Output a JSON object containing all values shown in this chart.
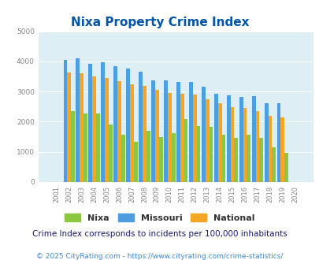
{
  "title": "Nixa Property Crime Index",
  "subtitle": "Crime Index corresponds to incidents per 100,000 inhabitants",
  "footer": "© 2025 CityRating.com - https://www.cityrating.com/crime-statistics/",
  "years": [
    2001,
    2002,
    2003,
    2004,
    2005,
    2006,
    2007,
    2008,
    2009,
    2010,
    2011,
    2012,
    2013,
    2014,
    2015,
    2016,
    2017,
    2018,
    2019,
    2020
  ],
  "nixa": [
    0,
    2340,
    2280,
    2270,
    1900,
    1560,
    1320,
    1700,
    1490,
    1610,
    2080,
    1860,
    1820,
    1560,
    1450,
    1560,
    1450,
    1160,
    960,
    0
  ],
  "missouri": [
    0,
    4060,
    4090,
    3910,
    3960,
    3840,
    3750,
    3670,
    3380,
    3380,
    3320,
    3330,
    3150,
    2930,
    2870,
    2810,
    2850,
    2620,
    2620,
    0
  ],
  "national": [
    0,
    3640,
    3600,
    3510,
    3450,
    3340,
    3250,
    3200,
    3050,
    2960,
    2930,
    2890,
    2740,
    2600,
    2490,
    2460,
    2360,
    2200,
    2150,
    0
  ],
  "nixa_color": "#8dc63f",
  "missouri_color": "#4d9de0",
  "national_color": "#f5a623",
  "bg_color": "#ddeef5",
  "title_color": "#0055aa",
  "subtitle_color": "#1a1a6e",
  "footer_color": "#4488cc",
  "ylim": [
    0,
    5000
  ],
  "yticks": [
    0,
    1000,
    2000,
    3000,
    4000,
    5000
  ]
}
